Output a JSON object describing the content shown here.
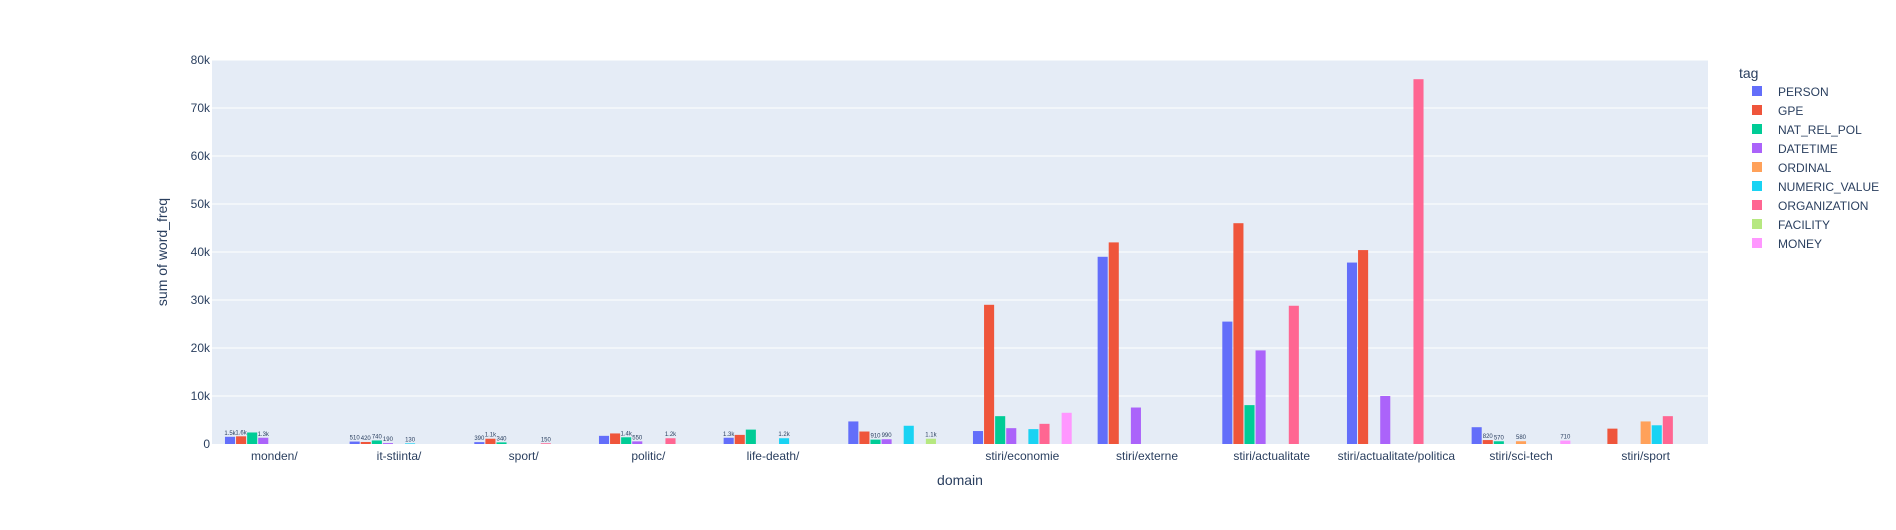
{
  "chart_data": {
    "type": "bar",
    "barmode": "group",
    "xlabel": "domain",
    "ylabel": "sum of word_freq",
    "ylim": [
      0,
      80000
    ],
    "yticks": [
      0,
      10000,
      20000,
      30000,
      40000,
      50000,
      60000,
      70000,
      80000
    ],
    "ytick_labels": [
      "0",
      "10k",
      "20k",
      "30k",
      "40k",
      "50k",
      "60k",
      "70k",
      "80k"
    ],
    "grid": true,
    "legend_title": "tag",
    "legend_position": "top-right",
    "categories": [
      "monden/",
      "it-stiinta/",
      "sport/",
      "politic/",
      "life-death/",
      "",
      "stiri/economie",
      "stiri/externe",
      "stiri/actualitate",
      "stiri/actualitate/politica",
      "stiri/sci-tech",
      "stiri/sport"
    ],
    "series": [
      {
        "name": "PERSON",
        "color": "#636efa",
        "values": [
          1500,
          510,
          390,
          1700,
          1300,
          4700,
          2700,
          39000,
          25500,
          37800,
          3500,
          null
        ],
        "labels": [
          "1.5k",
          "510",
          "390",
          "",
          "1.3k",
          "",
          "",
          "",
          "",
          "",
          "",
          ""
        ]
      },
      {
        "name": "GPE",
        "color": "#EF553B",
        "values": [
          1600,
          420,
          1100,
          2200,
          1900,
          2600,
          29000,
          42000,
          46000,
          40400,
          820,
          3200
        ],
        "labels": [
          "1.6k",
          "420",
          "1.1k",
          "",
          "",
          "",
          "",
          "",
          "",
          "",
          "820",
          ""
        ]
      },
      {
        "name": "NAT_REL_POL",
        "color": "#00cc96",
        "values": [
          2400,
          740,
          340,
          1400,
          3000,
          910,
          5800,
          null,
          8100,
          null,
          570,
          null
        ],
        "labels": [
          "",
          "740",
          "340",
          "1.4k",
          "",
          "910",
          "",
          "",
          "",
          "",
          "570",
          ""
        ]
      },
      {
        "name": "DATETIME",
        "color": "#ab63fa",
        "values": [
          1300,
          190,
          null,
          550,
          null,
          990,
          3300,
          7600,
          19500,
          10000,
          null,
          null
        ],
        "labels": [
          "1.3k",
          "190",
          "",
          "550",
          "",
          "990",
          "",
          "",
          "",
          "",
          "",
          ""
        ]
      },
      {
        "name": "ORDINAL",
        "color": "#FFA15A",
        "values": [
          null,
          null,
          null,
          null,
          null,
          null,
          null,
          null,
          null,
          null,
          580,
          4700
        ],
        "labels": [
          "",
          "",
          "",
          "",
          "",
          "",
          "",
          "",
          "",
          "",
          "580",
          ""
        ]
      },
      {
        "name": "NUMERIC_VALUE",
        "color": "#19d3f3",
        "values": [
          null,
          130,
          null,
          null,
          1200,
          3800,
          3100,
          null,
          null,
          null,
          null,
          3900
        ],
        "labels": [
          "",
          "130",
          "",
          "",
          "1.2k",
          "",
          "",
          "",
          "",
          "",
          "",
          ""
        ]
      },
      {
        "name": "ORGANIZATION",
        "color": "#FF6692",
        "values": [
          null,
          null,
          150,
          1200,
          null,
          null,
          4200,
          null,
          28800,
          76000,
          null,
          5800
        ],
        "labels": [
          "",
          "",
          "150",
          "1.2k",
          "",
          "",
          "",
          "",
          "",
          "",
          "",
          ""
        ]
      },
      {
        "name": "FACILITY",
        "color": "#B6E880",
        "values": [
          null,
          null,
          null,
          null,
          null,
          1100,
          null,
          null,
          null,
          null,
          null,
          null
        ],
        "labels": [
          "",
          "",
          "",
          "",
          "",
          "1.1k",
          "",
          "",
          "",
          "",
          "",
          ""
        ]
      },
      {
        "name": "MONEY",
        "color": "#FF97FF",
        "values": [
          null,
          null,
          null,
          null,
          null,
          null,
          6500,
          null,
          null,
          null,
          710,
          null
        ],
        "labels": [
          "",
          "",
          "",
          "",
          "",
          "",
          "",
          "",
          "",
          "",
          "710",
          ""
        ]
      }
    ]
  },
  "colors": {
    "plot_bg": "#e5ecf6",
    "grid": "#ffffff",
    "text": "#2a3f5f"
  }
}
